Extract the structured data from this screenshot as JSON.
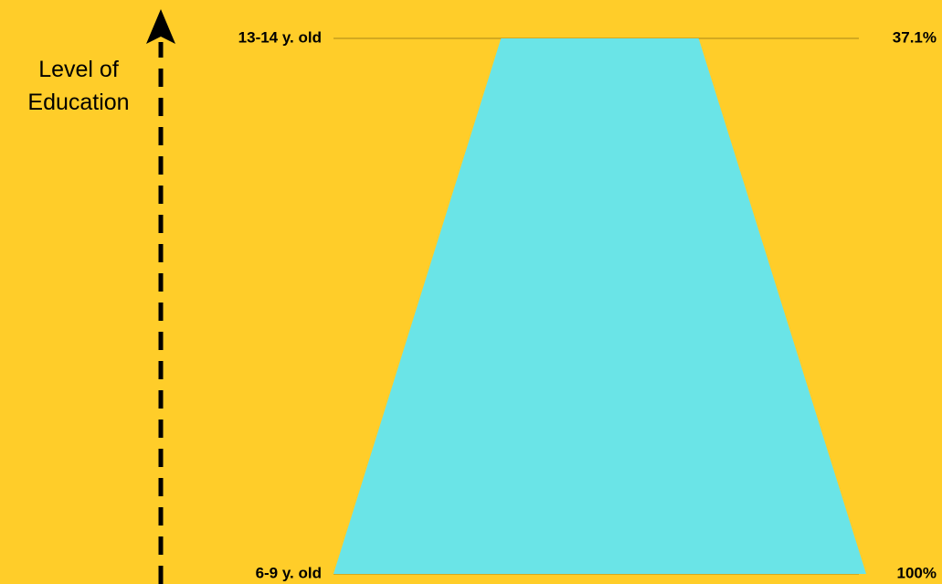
{
  "chart_data": {
    "type": "funnel",
    "axis_label": "Level of Education",
    "categories": [
      "6-9 y. old",
      "13-14 y. old"
    ],
    "values": [
      100,
      37.1
    ],
    "value_labels": [
      "100%",
      "37.1%"
    ],
    "color": "#6AE4E7",
    "background": "#FFCD29"
  }
}
